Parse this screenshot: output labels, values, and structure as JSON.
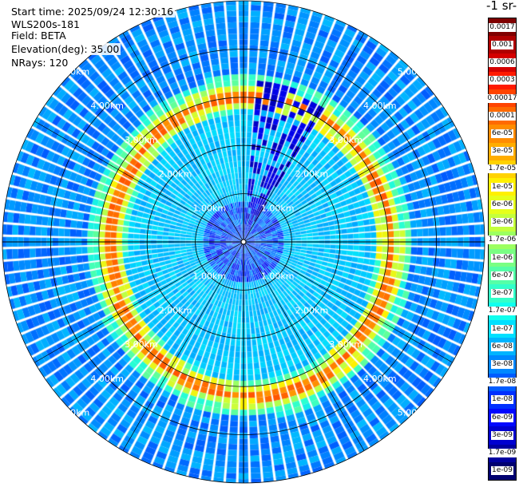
{
  "header": {
    "start_time": "Start time: 2025/09/24 12:30:16",
    "instrument": "WLS200s-181",
    "field": "Field: BETA",
    "elevation": "Elevation(deg): 35.00",
    "nrays": "NRays: 120"
  },
  "colorbar": {
    "title": "-1 sr-",
    "labels": [
      "0.0017",
      "0.001",
      "0.0006",
      "0.0003",
      "0.00017",
      "0.0001",
      "6e-05",
      "3e-05",
      "1.7e-05",
      "1e-05",
      "6e-06",
      "3e-06",
      "1.7e-06",
      "1e-06",
      "6e-07",
      "3e-07",
      "1.7e-07",
      "1e-07",
      "6e-08",
      "3e-08",
      "1.7e-08",
      "1e-08",
      "6e-09",
      "3e-09",
      "1.7e-09",
      "1e-09"
    ],
    "colors": [
      "#7f0000",
      "#b00000",
      "#d40000",
      "#ff1a00",
      "#ff4400",
      "#ff6a00",
      "#ff8c00",
      "#ffad00",
      "#ffd200",
      "#fff000",
      "#e6ff1a",
      "#c4ff3c",
      "#9cff60",
      "#79ff83",
      "#55ffa7",
      "#33ffc9",
      "#10ffee",
      "#00e0ff",
      "#00b4ff",
      "#0088ff",
      "#005cff",
      "#0030ff",
      "#0008ff",
      "#0000d0",
      "#0000a0",
      "#000070"
    ]
  },
  "chart_data": {
    "type": "heatmap",
    "projection": "polar-ppi",
    "field": "BETA",
    "elevation_deg": 35.0,
    "nrays": 120,
    "range_unit": "km",
    "range_rings_km": [
      1.0,
      2.0,
      3.0,
      4.0,
      5.0
    ],
    "ring_labels": [
      "1.00km",
      "2.00km",
      "3.00km",
      "4.00km",
      "5.00km"
    ],
    "max_range_km": 5.0,
    "features": {
      "background_beta": 6e-08,
      "inner_region_beta": 1e-07,
      "boundary_layer_ring_range_km": 3.0,
      "boundary_layer_ring_peak_beta": 0.0001,
      "near_field_beta": 3e-09
    }
  }
}
